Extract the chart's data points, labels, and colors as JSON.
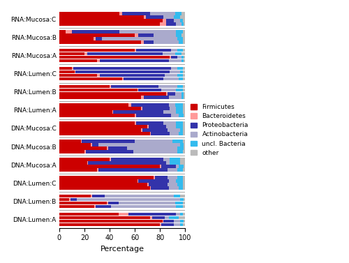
{
  "categories": [
    "RNA:Mucosa:C",
    "RNA:Mucosa:B",
    "RNA:Mucosa:A",
    "RNA:Lumen:C",
    "RNA:Lumen:B",
    "RNA:Lumen:A",
    "DNA:Mucosa:C",
    "DNA:Mucosa:B",
    "DNA:Mucosa:A",
    "DNA:Lumen:C",
    "DNA:Lumen:B",
    "DNA:Lumen:A"
  ],
  "colors": {
    "Firmicutes": "#CC0000",
    "Bacteroidetes": "#FF9999",
    "Proteobacteria": "#3333AA",
    "Actinobacteria": "#AAAACC",
    "uncl. Bacteria": "#33BBEE",
    "other": "#BBBBBB"
  },
  "phyla": [
    "Firmicutes",
    "Bacteroidetes",
    "Proteobacteria",
    "Actinobacteria",
    "uncl. Bacteria",
    "other"
  ],
  "data": {
    "RNA:Mucosa:C": [
      [
        48,
        2,
        22,
        20,
        5,
        3
      ],
      [
        67,
        2,
        14,
        8,
        5,
        4
      ],
      [
        82,
        3,
        6,
        5,
        2,
        2
      ],
      [
        80,
        5,
        8,
        4,
        2,
        1
      ]
    ],
    "RNA:Mucosa:B": [
      [
        5,
        5,
        38,
        45,
        5,
        2
      ],
      [
        60,
        3,
        12,
        18,
        4,
        3
      ],
      [
        27,
        2,
        5,
        60,
        4,
        2
      ],
      [
        65,
        2,
        8,
        20,
        3,
        2
      ]
    ],
    "RNA:Mucosa:A": [
      [
        60,
        1,
        28,
        5,
        4,
        2
      ],
      [
        20,
        2,
        60,
        10,
        5,
        3
      ],
      [
        88,
        1,
        5,
        3,
        2,
        1
      ],
      [
        30,
        2,
        55,
        10,
        2,
        1
      ]
    ],
    "RNA:Lumen:C": [
      [
        10,
        1,
        78,
        5,
        4,
        2
      ],
      [
        12,
        1,
        75,
        8,
        2,
        2
      ],
      [
        30,
        2,
        52,
        10,
        4,
        2
      ],
      [
        50,
        1,
        32,
        12,
        3,
        2
      ]
    ],
    "RNA:Lumen:B": [
      [
        40,
        1,
        38,
        15,
        4,
        2
      ],
      [
        62,
        1,
        18,
        12,
        5,
        2
      ],
      [
        85,
        1,
        6,
        5,
        2,
        1
      ],
      [
        65,
        2,
        20,
        10,
        2,
        1
      ]
    ],
    "RNA:Lumen:A": [
      [
        55,
        2,
        30,
        5,
        6,
        2
      ],
      [
        65,
        1,
        22,
        5,
        5,
        2
      ],
      [
        42,
        1,
        40,
        10,
        5,
        2
      ],
      [
        60,
        1,
        28,
        6,
        4,
        1
      ]
    ],
    "DNA:Mucosa:C": [
      [
        60,
        1,
        22,
        10,
        5,
        2
      ],
      [
        70,
        1,
        14,
        8,
        5,
        2
      ],
      [
        65,
        1,
        20,
        10,
        2,
        2
      ],
      [
        72,
        1,
        15,
        7,
        3,
        2
      ]
    ],
    "DNA:Mucosa:B": [
      [
        17,
        1,
        42,
        30,
        8,
        2
      ],
      [
        25,
        1,
        5,
        65,
        3,
        1
      ],
      [
        38,
        1,
        15,
        40,
        5,
        1
      ],
      [
        20,
        1,
        38,
        35,
        4,
        2
      ]
    ],
    "DNA:Mucosa:A": [
      [
        40,
        1,
        42,
        5,
        8,
        4
      ],
      [
        22,
        1,
        62,
        3,
        8,
        4
      ],
      [
        80,
        1,
        12,
        2,
        4,
        1
      ],
      [
        30,
        1,
        55,
        8,
        4,
        2
      ]
    ],
    "DNA:Lumen:C": [
      [
        75,
        1,
        10,
        8,
        4,
        2
      ],
      [
        62,
        1,
        24,
        6,
        5,
        2
      ],
      [
        70,
        1,
        15,
        8,
        4,
        2
      ],
      [
        72,
        1,
        14,
        8,
        3,
        2
      ]
    ],
    "DNA:Lumen:B": [
      [
        25,
        1,
        10,
        55,
        5,
        4
      ],
      [
        8,
        1,
        5,
        82,
        3,
        1
      ],
      [
        38,
        1,
        8,
        45,
        6,
        2
      ],
      [
        28,
        1,
        12,
        52,
        5,
        2
      ]
    ],
    "DNA:Lumen:A": [
      [
        47,
        8,
        38,
        3,
        2,
        2
      ],
      [
        72,
        2,
        10,
        3,
        8,
        5
      ],
      [
        82,
        1,
        8,
        5,
        3,
        1
      ],
      [
        80,
        1,
        10,
        5,
        2,
        2
      ]
    ]
  },
  "xlabel": "Percentage",
  "xlim": [
    0,
    100
  ],
  "background_color": "#FFFFFF",
  "separator_color": "#999999",
  "n_samples": 4
}
